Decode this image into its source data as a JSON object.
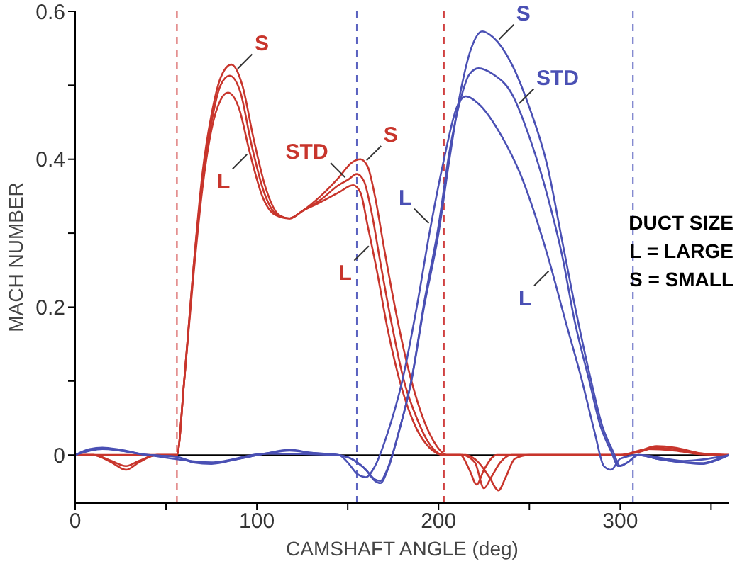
{
  "chart_data": {
    "type": "line",
    "xlabel": "CAMSHAFT ANGLE (deg)",
    "ylabel": "MACH NUMBER",
    "xlim": [
      0,
      360
    ],
    "ylim": [
      -0.065,
      0.6
    ],
    "xticks": [
      0,
      {
        "value": 50,
        "label": null
      },
      100,
      {
        "value": 150,
        "label": null
      },
      200,
      {
        "value": 250,
        "label": null
      },
      300,
      {
        "value": 350,
        "label": null
      }
    ],
    "yticks": [
      0,
      {
        "value": 0.1,
        "label": null
      },
      0.2,
      {
        "value": 0.3,
        "label": null
      },
      0.4,
      {
        "value": 0.5,
        "label": null
      },
      0.6
    ],
    "grid": false,
    "legend": false,
    "marker": "none",
    "line_style": "solid",
    "series": [
      {
        "color": "#c8352c",
        "x": [
          0,
          10,
          20,
          28,
          35,
          45,
          56,
          60,
          65,
          70,
          75,
          80,
          86,
          92,
          98,
          105,
          112,
          118,
          125,
          135,
          145,
          152,
          157,
          161,
          165,
          170,
          176,
          183,
          190,
          197,
          205,
          215,
          222,
          228,
          233,
          237,
          242,
          250,
          300,
          310,
          320,
          330,
          345,
          360
        ],
        "values": [
          0,
          0,
          -0.01,
          -0.02,
          -0.01,
          0,
          0,
          0.1,
          0.25,
          0.38,
          0.46,
          0.51,
          0.528,
          0.5,
          0.43,
          0.36,
          0.325,
          0.32,
          0.33,
          0.35,
          0.375,
          0.395,
          0.4,
          0.39,
          0.35,
          0.28,
          0.2,
          0.12,
          0.06,
          0.02,
          0,
          0,
          -0.01,
          -0.03,
          -0.048,
          -0.03,
          -0.005,
          0,
          0,
          0.005,
          0.012,
          0.01,
          0.002,
          0
        ]
      },
      {
        "color": "#c8352c",
        "x": [
          0,
          10,
          20,
          28,
          35,
          45,
          56,
          60,
          65,
          70,
          75,
          80,
          85,
          91,
          97,
          104,
          111,
          118,
          125,
          135,
          145,
          150,
          155,
          159,
          163,
          168,
          174,
          181,
          188,
          195,
          203,
          213,
          220,
          225,
          229,
          234,
          240,
          250,
          300,
          310,
          320,
          330,
          345,
          360
        ],
        "values": [
          0,
          0,
          -0.008,
          -0.015,
          -0.008,
          0,
          0,
          0.1,
          0.25,
          0.37,
          0.45,
          0.5,
          0.513,
          0.49,
          0.42,
          0.355,
          0.325,
          0.32,
          0.33,
          0.345,
          0.365,
          0.372,
          0.38,
          0.37,
          0.33,
          0.26,
          0.18,
          0.1,
          0.05,
          0.015,
          0,
          0,
          -0.01,
          -0.045,
          -0.03,
          -0.01,
          0,
          0,
          0,
          0.004,
          0.01,
          0.008,
          0.002,
          0
        ]
      },
      {
        "color": "#c8352c",
        "x": [
          0,
          20,
          45,
          56,
          60,
          65,
          70,
          75,
          80,
          84,
          90,
          96,
          103,
          110,
          118,
          125,
          135,
          145,
          153,
          157,
          161,
          166,
          172,
          181,
          188,
          195,
          203,
          212,
          217,
          221,
          225,
          232,
          240,
          300,
          315,
          330,
          345,
          360
        ],
        "values": [
          0,
          0,
          0,
          0,
          0.1,
          0.24,
          0.36,
          0.44,
          0.48,
          0.49,
          0.47,
          0.41,
          0.35,
          0.325,
          0.32,
          0.33,
          0.342,
          0.355,
          0.365,
          0.355,
          0.31,
          0.25,
          0.17,
          0.08,
          0.035,
          0.01,
          0,
          0,
          -0.02,
          -0.04,
          -0.02,
          0,
          0,
          0,
          0.008,
          0.006,
          0.001,
          0
        ]
      },
      {
        "color": "#4a50b4",
        "x": [
          0,
          8,
          15,
          25,
          40,
          55,
          65,
          75,
          90,
          105,
          118,
          130,
          145,
          152,
          160,
          165,
          168,
          172,
          178,
          185,
          192,
          200,
          206,
          212,
          218,
          224,
          230,
          240,
          250,
          260,
          268,
          276,
          284,
          290,
          296,
          300,
          304,
          310,
          320,
          335,
          345,
          352,
          360
        ],
        "values": [
          0,
          0.008,
          0.01,
          0.007,
          0,
          -0.002,
          -0.01,
          -0.012,
          -0.005,
          0.002,
          0.007,
          0.003,
          0,
          -0.005,
          -0.02,
          -0.035,
          -0.038,
          -0.02,
          0.03,
          0.1,
          0.2,
          0.3,
          0.4,
          0.49,
          0.55,
          0.573,
          0.565,
          0.53,
          0.47,
          0.39,
          0.29,
          0.19,
          0.1,
          0.04,
          0.005,
          -0.015,
          -0.01,
          0,
          -0.005,
          -0.01,
          -0.012,
          -0.008,
          0
        ]
      },
      {
        "color": "#4a50b4",
        "x": [
          0,
          8,
          15,
          25,
          40,
          55,
          65,
          75,
          90,
          105,
          118,
          130,
          145,
          152,
          160,
          165,
          168,
          172,
          178,
          185,
          192,
          200,
          206,
          212,
          217,
          222,
          230,
          240,
          250,
          260,
          268,
          275,
          283,
          289,
          295,
          299,
          304,
          310,
          320,
          335,
          345,
          352,
          360
        ],
        "values": [
          0,
          0.007,
          0.009,
          0.006,
          0,
          -0.002,
          -0.009,
          -0.011,
          -0.005,
          0.002,
          0.006,
          0.003,
          0,
          -0.005,
          -0.02,
          -0.033,
          -0.035,
          -0.018,
          0.03,
          0.1,
          0.205,
          0.31,
          0.41,
          0.48,
          0.515,
          0.523,
          0.515,
          0.49,
          0.43,
          0.35,
          0.27,
          0.18,
          0.1,
          0.04,
          0.005,
          -0.015,
          -0.01,
          0,
          -0.005,
          -0.01,
          -0.011,
          -0.007,
          0
        ]
      },
      {
        "color": "#4a50b4",
        "x": [
          0,
          15,
          40,
          75,
          105,
          145,
          150,
          155,
          160,
          165,
          172,
          180,
          188,
          195,
          203,
          210,
          215,
          222,
          235,
          245,
          260,
          270,
          279,
          286,
          291,
          295,
          300,
          310,
          335,
          360
        ],
        "values": [
          0,
          0.008,
          0,
          -0.01,
          0.002,
          0,
          -0.01,
          -0.025,
          -0.03,
          -0.015,
          0.03,
          0.1,
          0.2,
          0.3,
          0.4,
          0.47,
          0.485,
          0.475,
          0.43,
          0.38,
          0.27,
          0.18,
          0.1,
          0.03,
          -0.015,
          -0.02,
          -0.005,
          0,
          -0.008,
          0
        ]
      }
    ],
    "ref_lines": [
      {
        "axis": "y",
        "value": 0,
        "color": "#000000",
        "line_style": "solid"
      },
      {
        "axis": "x",
        "value": 56,
        "color": "#d04040",
        "line_style": "dashed"
      },
      {
        "axis": "x",
        "value": 155,
        "color": "#5a62c0",
        "line_style": "dashed"
      },
      {
        "axis": "x",
        "value": 203,
        "color": "#d04040",
        "line_style": "dashed"
      },
      {
        "axis": "x",
        "value": 307,
        "color": "#5a62c0",
        "line_style": "dashed"
      }
    ],
    "annotations": [
      {
        "text": "S",
        "x": 88,
        "y": 0.519
      },
      {
        "text": "L",
        "x": 96,
        "y": 0.41
      },
      {
        "text": "STD",
        "x": 150,
        "y": 0.372
      },
      {
        "text": "S",
        "x": 159,
        "y": 0.395
      },
      {
        "text": "L",
        "x": 163,
        "y": 0.286
      },
      {
        "text": "L",
        "x": 196,
        "y": 0.31
      },
      {
        "text": "S",
        "x": 232,
        "y": 0.559
      },
      {
        "text": "STD",
        "x": 243,
        "y": 0.472
      },
      {
        "text": "L",
        "x": 262,
        "y": 0.252
      },
      "DUCT SIZE",
      "L = LARGE",
      "S = SMALL"
    ]
  }
}
